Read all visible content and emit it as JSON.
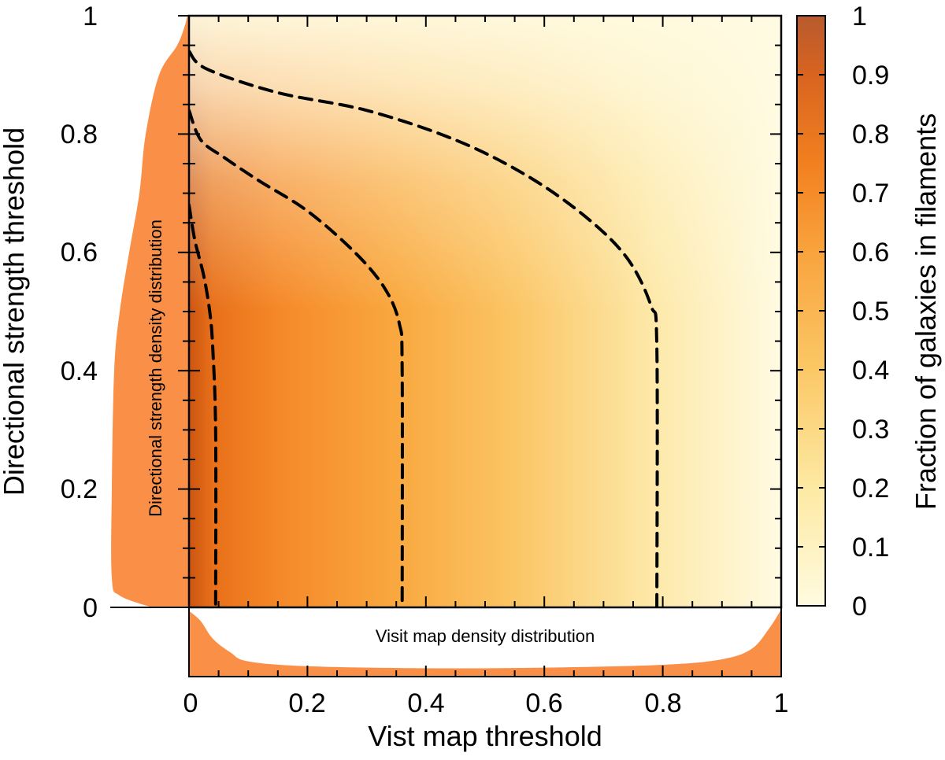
{
  "chart_data": {
    "type": "heatmap",
    "title": "",
    "xlabel": "Vist map threshold",
    "ylabel": "Directional strength threshold",
    "xlim": [
      0,
      1
    ],
    "ylim": [
      0,
      1
    ],
    "x_ticks": [
      "0",
      "0.2",
      "0.4",
      "0.6",
      "0.8",
      "1"
    ],
    "y_ticks": [
      "0",
      "0.2",
      "0.4",
      "0.6",
      "0.8",
      "1"
    ],
    "colorbar": {
      "label": "Fraction of galaxies in filaments",
      "range": [
        0,
        1
      ],
      "ticks": [
        "0",
        "0.1",
        "0.2",
        "0.3",
        "0.4",
        "0.5",
        "0.6",
        "0.7",
        "0.8",
        "0.9",
        "1"
      ],
      "colormap": [
        "#fffbe0",
        "#fde9a3",
        "#fbc866",
        "#f9a33d",
        "#f2801f",
        "#d95f10",
        "#b85a2e"
      ]
    },
    "contours": [
      {
        "name": "contour-inner",
        "points": [
          [
            0.0,
            0.68
          ],
          [
            0.01,
            0.62
          ],
          [
            0.025,
            0.56
          ],
          [
            0.035,
            0.5
          ],
          [
            0.04,
            0.44
          ],
          [
            0.045,
            0.3
          ],
          [
            0.045,
            0.0
          ]
        ]
      },
      {
        "name": "contour-middle",
        "points": [
          [
            0.0,
            0.84
          ],
          [
            0.02,
            0.79
          ],
          [
            0.06,
            0.76
          ],
          [
            0.12,
            0.72
          ],
          [
            0.2,
            0.67
          ],
          [
            0.28,
            0.6
          ],
          [
            0.33,
            0.54
          ],
          [
            0.355,
            0.48
          ],
          [
            0.36,
            0.4
          ],
          [
            0.36,
            0.0
          ]
        ]
      },
      {
        "name": "contour-outer",
        "points": [
          [
            0.0,
            0.94
          ],
          [
            0.03,
            0.91
          ],
          [
            0.15,
            0.87
          ],
          [
            0.3,
            0.84
          ],
          [
            0.45,
            0.79
          ],
          [
            0.57,
            0.73
          ],
          [
            0.67,
            0.66
          ],
          [
            0.74,
            0.59
          ],
          [
            0.78,
            0.51
          ],
          [
            0.79,
            0.44
          ],
          [
            0.79,
            0.0
          ]
        ]
      }
    ],
    "marginal_x": {
      "label": "Visit map density distribution",
      "x": [
        0,
        0.02,
        0.04,
        0.07,
        0.1,
        0.2,
        0.4,
        0.6,
        0.8,
        0.9,
        0.95,
        0.98,
        1
      ],
      "density": [
        0.95,
        0.8,
        0.55,
        0.35,
        0.22,
        0.15,
        0.12,
        0.13,
        0.17,
        0.25,
        0.4,
        0.7,
        0.97
      ]
    },
    "marginal_y": {
      "label": "Directional strength density distribution",
      "y": [
        0,
        0.02,
        0.05,
        0.2,
        0.4,
        0.5,
        0.6,
        0.7,
        0.8,
        0.9,
        0.95,
        0.98,
        1
      ],
      "density": [
        0.47,
        0.88,
        0.98,
        0.98,
        0.95,
        0.88,
        0.76,
        0.63,
        0.55,
        0.38,
        0.15,
        0.06,
        0.02
      ]
    }
  }
}
